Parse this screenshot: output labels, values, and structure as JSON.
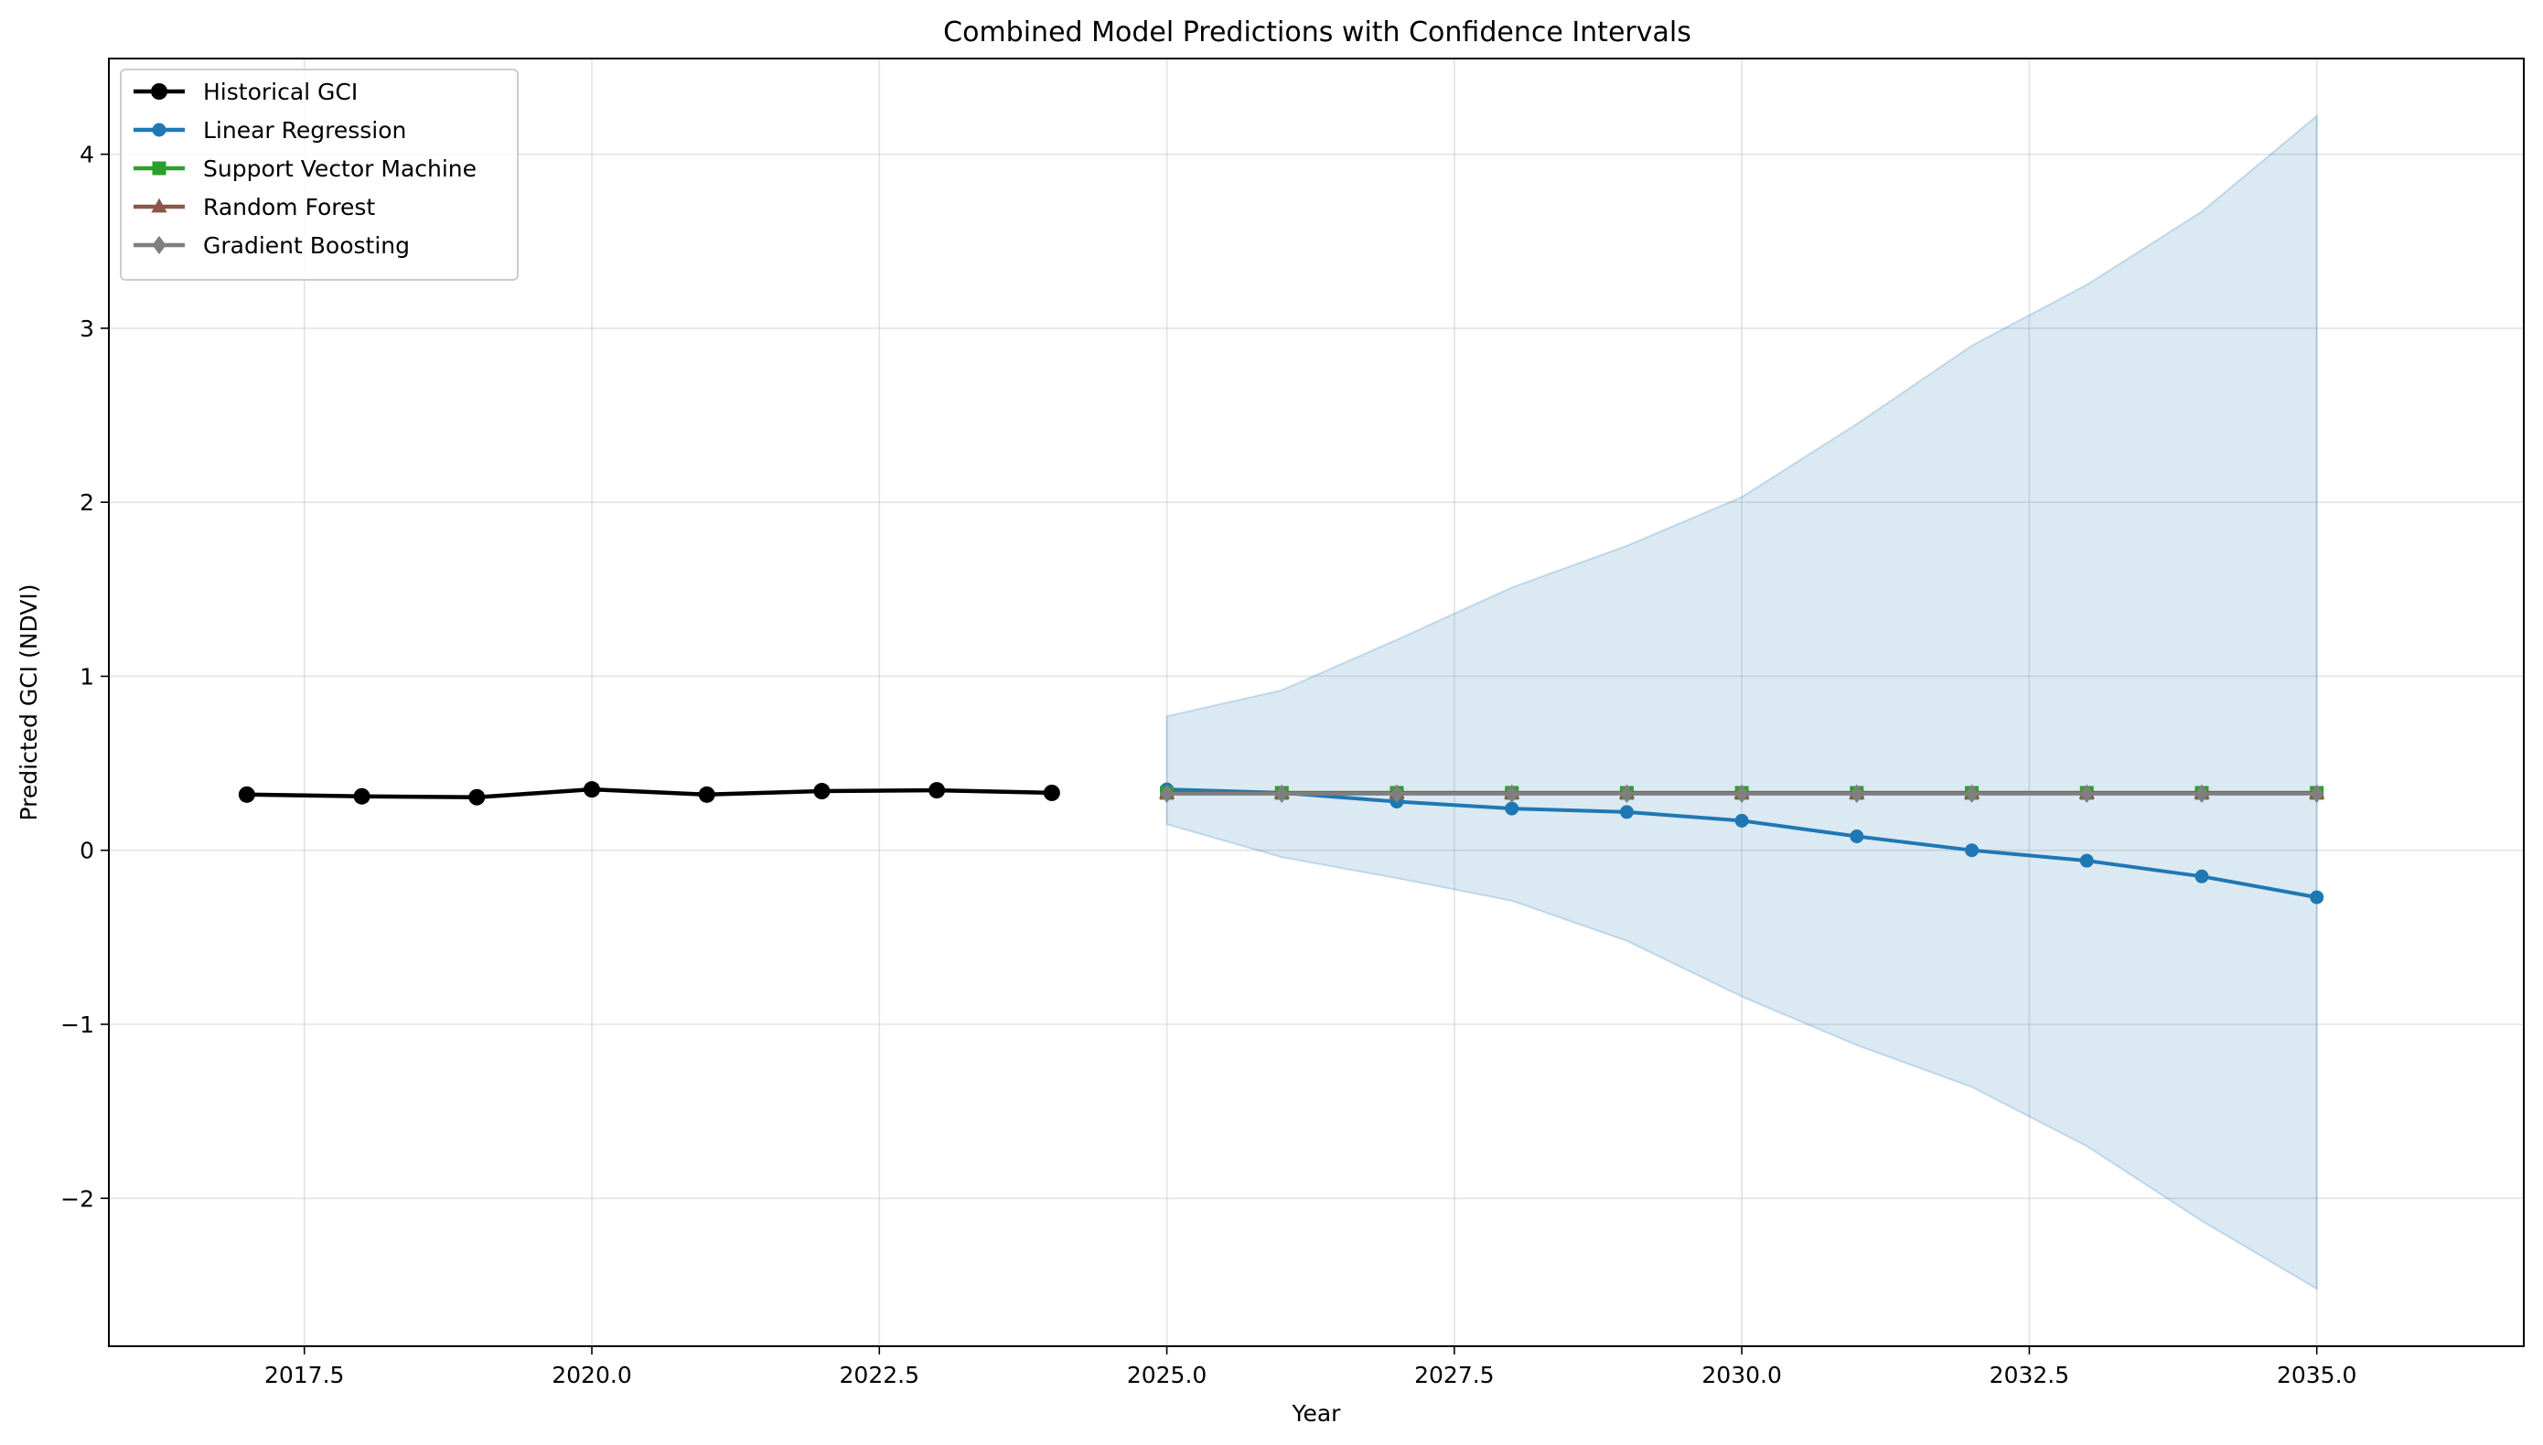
{
  "chart_data": {
    "type": "line",
    "title": "Combined Model Predictions with Confidence Intervals",
    "xlabel": "Year",
    "ylabel": "Predicted GCI (NDVI)",
    "xlim": [
      2015.8,
      2036.8
    ],
    "ylim": [
      -2.85,
      4.55
    ],
    "xticks": [
      2017.5,
      2020.0,
      2022.5,
      2025.0,
      2027.5,
      2030.0,
      2032.5,
      2035.0
    ],
    "xtick_labels": [
      "2017.5",
      "2020.0",
      "2022.5",
      "2025.0",
      "2027.5",
      "2030.0",
      "2032.5",
      "2035.0"
    ],
    "yticks": [
      -2,
      -1,
      0,
      1,
      2,
      3,
      4
    ],
    "ytick_labels": [
      "−2",
      "−1",
      "0",
      "1",
      "2",
      "3",
      "4"
    ],
    "grid": true,
    "legend_position": "top-left",
    "confidence_interval": {
      "name": "Confidence Interval",
      "color": "#1f77b4",
      "x": [
        2025,
        2026,
        2027,
        2028,
        2029,
        2030,
        2031,
        2032,
        2033,
        2034,
        2035
      ],
      "lower": [
        0.15,
        -0.04,
        -0.16,
        -0.29,
        -0.52,
        -0.84,
        -1.12,
        -1.36,
        -1.7,
        -2.13,
        -2.52
      ],
      "upper": [
        0.77,
        0.92,
        1.21,
        1.51,
        1.75,
        2.03,
        2.45,
        2.9,
        3.25,
        3.67,
        4.22
      ]
    },
    "series": [
      {
        "name": "Historical GCI",
        "color": "#000000",
        "marker": "circle",
        "x": [
          2017,
          2018,
          2019,
          2020,
          2021,
          2022,
          2023,
          2024
        ],
        "values": [
          0.32,
          0.31,
          0.305,
          0.35,
          0.32,
          0.34,
          0.345,
          0.33
        ]
      },
      {
        "name": "Linear Regression",
        "color": "#1f77b4",
        "marker": "circle",
        "x": [
          2025,
          2026,
          2027,
          2028,
          2029,
          2030,
          2031,
          2032,
          2033,
          2034,
          2035
        ],
        "values": [
          0.35,
          0.33,
          0.28,
          0.24,
          0.22,
          0.17,
          0.08,
          0.0,
          -0.06,
          -0.15,
          -0.27
        ]
      },
      {
        "name": "Support Vector Machine",
        "color": "#2ca02c",
        "marker": "square",
        "x": [
          2025,
          2026,
          2027,
          2028,
          2029,
          2030,
          2031,
          2032,
          2033,
          2034,
          2035
        ],
        "values": [
          0.33,
          0.33,
          0.33,
          0.33,
          0.33,
          0.33,
          0.33,
          0.33,
          0.33,
          0.33,
          0.33
        ]
      },
      {
        "name": "Random Forest",
        "color": "#8c564b",
        "marker": "triangle",
        "x": [
          2025,
          2026,
          2027,
          2028,
          2029,
          2030,
          2031,
          2032,
          2033,
          2034,
          2035
        ],
        "values": [
          0.33,
          0.33,
          0.33,
          0.33,
          0.33,
          0.33,
          0.33,
          0.33,
          0.33,
          0.33,
          0.33
        ]
      },
      {
        "name": "Gradient Boosting",
        "color": "#7f7f7f",
        "marker": "diamond",
        "x": [
          2025,
          2026,
          2027,
          2028,
          2029,
          2030,
          2031,
          2032,
          2033,
          2034,
          2035
        ],
        "values": [
          0.325,
          0.325,
          0.325,
          0.325,
          0.325,
          0.325,
          0.325,
          0.325,
          0.325,
          0.325,
          0.325
        ]
      }
    ]
  }
}
